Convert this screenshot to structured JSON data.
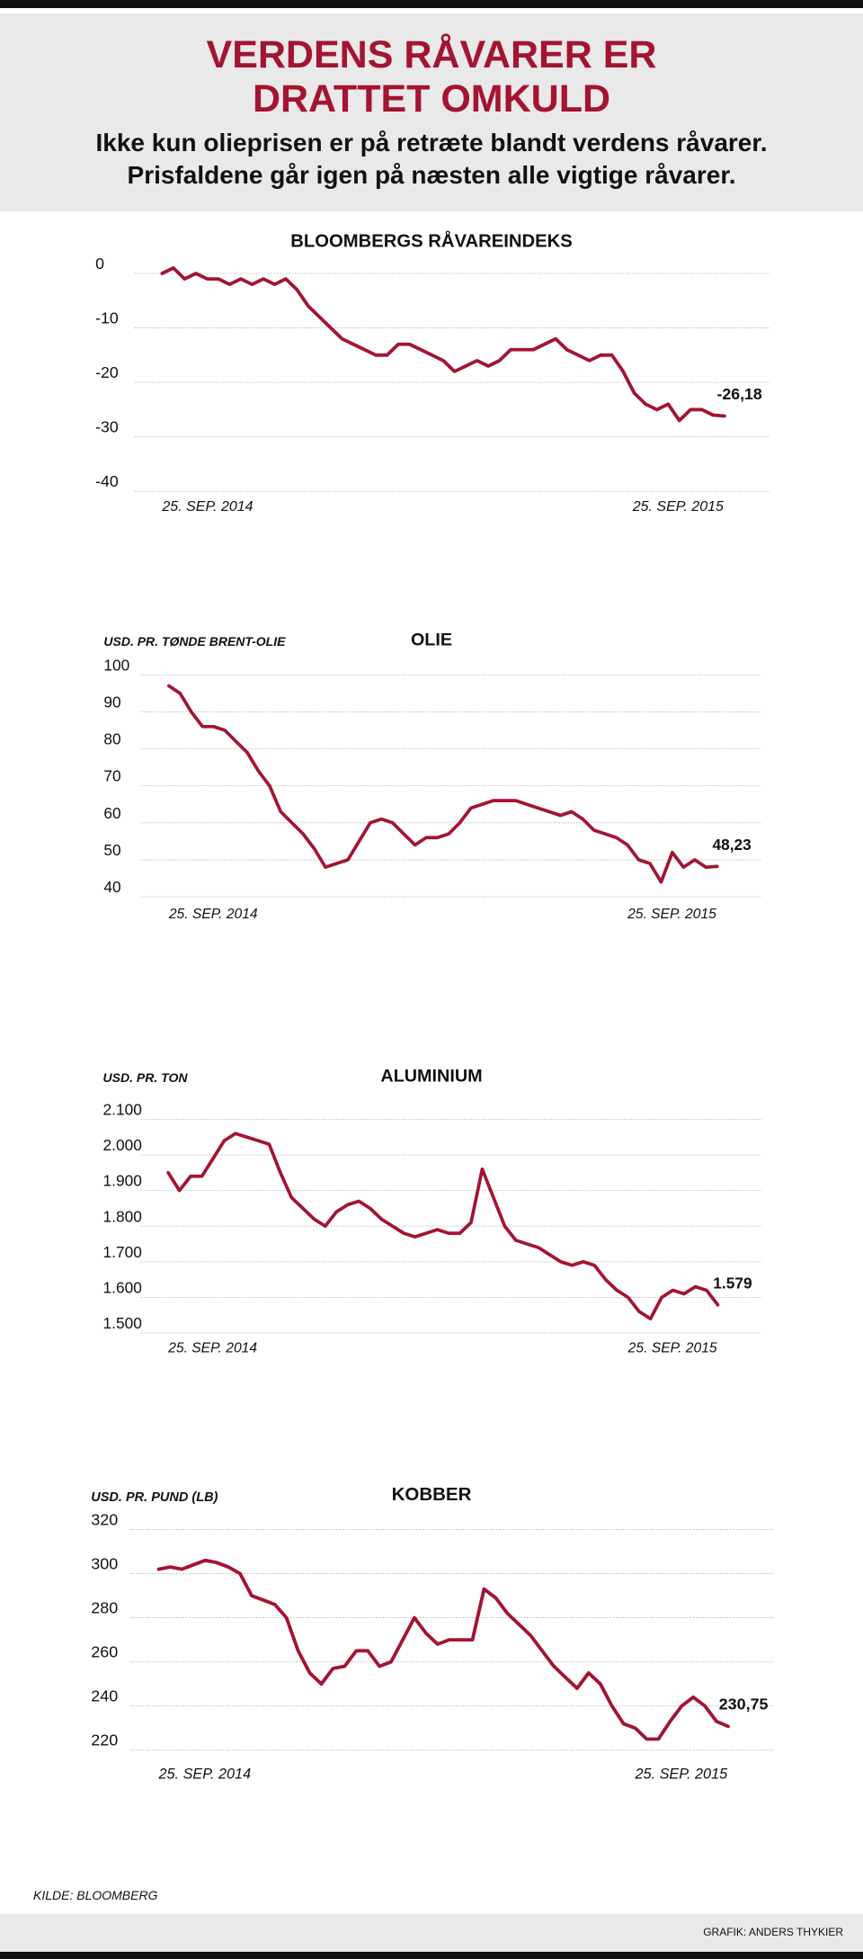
{
  "header": {
    "title_line1": "VERDENS RÅVARER ER",
    "title_line2": "DRATTET OMKULD",
    "subtitle_line1": "Ikke kun olieprisen er på retræte blandt verdens råvarer.",
    "subtitle_line2": "Prisfaldene går igen på næsten alle vigtige råvarer."
  },
  "footer": {
    "source": "KILDE: BLOOMBERG",
    "credit": "GRAFIK: ANDERS THYKIER"
  },
  "colors": {
    "accent": "#a31431",
    "line": "#a31431",
    "header_bg": "#e9e9e9",
    "grid": "#b5b5b5"
  },
  "chart_data": [
    {
      "type": "line",
      "title": "BLOOMBERGS RÅVAREINDEKS",
      "ylabel": "",
      "xlabel": "",
      "x_ticks": [
        "25. SEP. 2014",
        "25. SEP. 2015"
      ],
      "y_ticks": [
        "0",
        "-10",
        "-20",
        "-30",
        "-40"
      ],
      "ylim": [
        -40,
        0
      ],
      "last_label": "-26,18",
      "grid": true,
      "series": [
        {
          "values": [
            0,
            1,
            -1,
            0,
            -1,
            -1,
            -2,
            -1,
            -2,
            -1,
            -2,
            -1,
            -3,
            -6,
            -8,
            -10,
            -12,
            -13,
            -14,
            -15,
            -15,
            -13,
            -13,
            -14,
            -15,
            -16,
            -18,
            -17,
            -16,
            -17,
            -16,
            -14,
            -14,
            -14,
            -13,
            -12,
            -14,
            -15,
            -16,
            -15,
            -15,
            -18,
            -22,
            -24,
            -25,
            -24,
            -27,
            -25,
            -25,
            -26,
            -26.18
          ]
        }
      ]
    },
    {
      "type": "line",
      "title": "OLIE",
      "ylabel": "USD. PR. TØNDE BRENT-OLIE",
      "xlabel": "",
      "x_ticks": [
        "25. SEP. 2014",
        "25. SEP. 2015"
      ],
      "y_ticks": [
        "100",
        "90",
        "80",
        "70",
        "60",
        "50",
        "40"
      ],
      "ylim": [
        40,
        100
      ],
      "last_label": "48,23",
      "grid": true,
      "series": [
        {
          "values": [
            97,
            95,
            90,
            86,
            86,
            85,
            82,
            79,
            74,
            70,
            63,
            60,
            57,
            53,
            48,
            49,
            50,
            55,
            60,
            61,
            60,
            57,
            54,
            56,
            56,
            57,
            60,
            64,
            65,
            66,
            66,
            66,
            65,
            64,
            63,
            62,
            63,
            61,
            58,
            57,
            56,
            54,
            50,
            49,
            44,
            52,
            48,
            50,
            48,
            48.23
          ]
        }
      ]
    },
    {
      "type": "line",
      "title": "ALUMINIUM",
      "ylabel": "USD. PR. TON",
      "xlabel": "",
      "x_ticks": [
        "25. SEP. 2014",
        "25. SEP. 2015"
      ],
      "y_ticks": [
        "2.100",
        "2.000",
        "1.900",
        "1.800",
        "1.700",
        "1.600",
        "1.500"
      ],
      "ylim": [
        1500,
        2100
      ],
      "last_label": "1.579",
      "grid": true,
      "series": [
        {
          "values": [
            1950,
            1900,
            1940,
            1940,
            1990,
            2040,
            2060,
            2050,
            2040,
            2030,
            1950,
            1880,
            1850,
            1820,
            1800,
            1840,
            1860,
            1870,
            1850,
            1820,
            1800,
            1780,
            1770,
            1780,
            1790,
            1780,
            1780,
            1810,
            1960,
            1880,
            1800,
            1760,
            1750,
            1740,
            1720,
            1700,
            1690,
            1700,
            1690,
            1650,
            1620,
            1600,
            1560,
            1540,
            1600,
            1620,
            1610,
            1630,
            1620,
            1579
          ]
        }
      ]
    },
    {
      "type": "line",
      "title": "KOBBER",
      "ylabel": "USD. PR. PUND (LB)",
      "xlabel": "",
      "x_ticks": [
        "25. SEP. 2014",
        "25. SEP. 2015"
      ],
      "y_ticks": [
        "320",
        "300",
        "280",
        "260",
        "240",
        "220"
      ],
      "ylim": [
        220,
        320
      ],
      "last_label": "230,75",
      "grid": true,
      "series": [
        {
          "values": [
            302,
            303,
            302,
            304,
            306,
            305,
            303,
            300,
            290,
            288,
            286,
            280,
            265,
            255,
            250,
            257,
            258,
            265,
            265,
            258,
            260,
            270,
            280,
            273,
            268,
            270,
            270,
            270,
            293,
            289,
            282,
            277,
            272,
            265,
            258,
            253,
            248,
            255,
            250,
            240,
            232,
            230,
            225,
            225,
            233,
            240,
            244,
            240,
            233,
            230.75
          ]
        }
      ]
    }
  ]
}
